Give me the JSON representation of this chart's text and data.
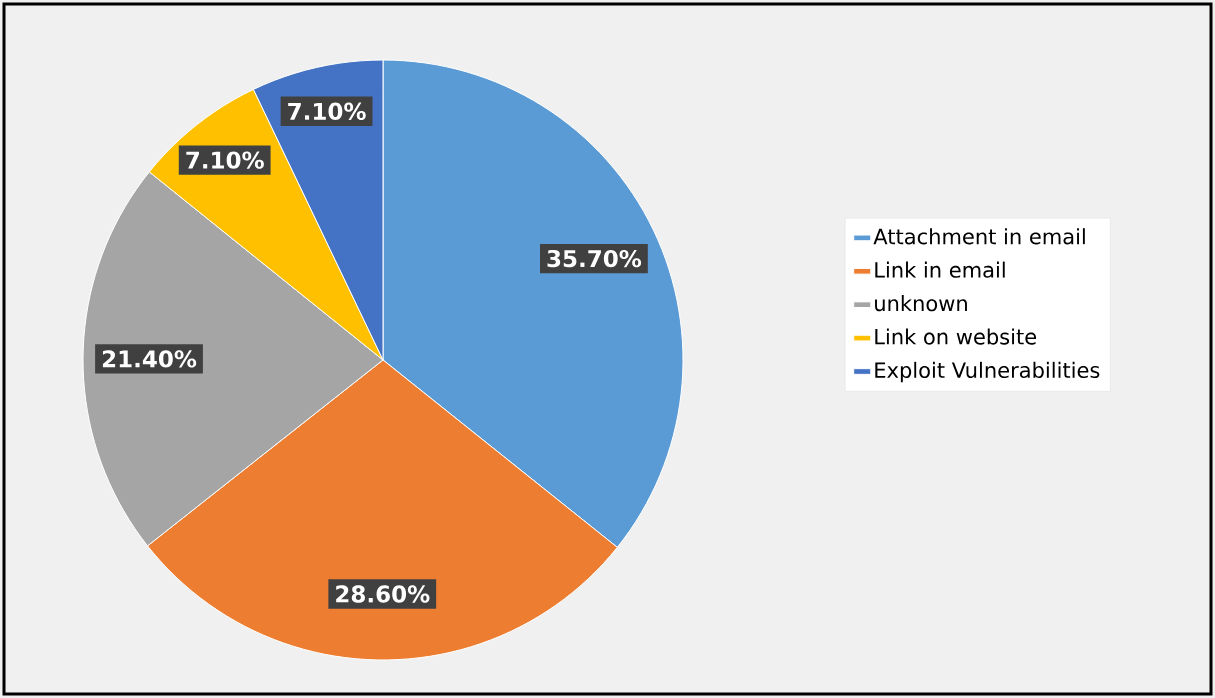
{
  "chart_data": {
    "type": "pie",
    "categories": [
      "Attachment in email",
      "Link in email",
      "unknown",
      "Link on website",
      "Exploit Vulnerabilities"
    ],
    "values": [
      35.7,
      28.6,
      21.4,
      7.1,
      7.1
    ],
    "colors": [
      "#5b9bd5",
      "#ed7d31",
      "#a5a5a5",
      "#ffc000",
      "#4472c4"
    ],
    "value_labels": [
      "35.70%",
      "28.60%",
      "21.40%",
      "7.10%",
      "7.10%"
    ],
    "legend": "right"
  }
}
